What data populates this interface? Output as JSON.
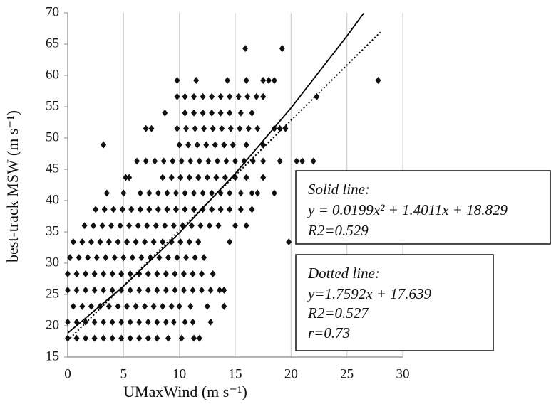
{
  "chart_data": {
    "type": "scatter",
    "x_label": "UMaxWind (m s⁻¹)",
    "y_label": "best-track MSW (m s⁻¹)",
    "xlim": [
      0,
      30
    ],
    "xticks": [
      0,
      5,
      10,
      15,
      20,
      25,
      30
    ],
    "ylim": [
      15,
      70
    ],
    "yticks": [
      15,
      20,
      25,
      30,
      35,
      40,
      45,
      50,
      55,
      60,
      65,
      70
    ],
    "grid": "x",
    "series": [
      {
        "color": "#111111",
        "x": [
          0,
          0.8,
          1.6,
          2.4,
          3.2,
          4,
          4.8,
          5.6,
          6.4,
          7.2,
          8,
          9,
          10.2,
          11.3,
          11.8,
          0,
          0.8,
          1.6,
          2.4,
          3.2,
          4,
          4.8,
          5.6,
          6.4,
          7.2,
          8,
          8.8,
          9.5,
          10.5,
          11.2,
          12.8,
          0.5,
          1.3,
          2.1,
          2.9,
          3.7,
          4.5,
          5.3,
          6.1,
          6.9,
          7.7,
          8.5,
          9.3,
          10,
          11,
          12.5,
          14,
          0,
          0.8,
          1.6,
          2.4,
          3.2,
          4,
          4.8,
          5.6,
          6.4,
          7.2,
          8,
          8.8,
          9.6,
          10.4,
          11.2,
          12,
          12.8,
          13.6,
          14,
          0,
          0.8,
          1.6,
          2.4,
          3.2,
          4,
          4.8,
          5.6,
          6.4,
          7.2,
          8,
          8.8,
          9.6,
          10.4,
          11.2,
          12,
          13,
          0.2,
          1,
          1.8,
          2.6,
          3.4,
          4.2,
          5,
          5.8,
          6.6,
          7.4,
          8.2,
          9,
          9.8,
          10.6,
          11.4,
          12.2,
          0.5,
          1.3,
          2.1,
          2.9,
          3.7,
          4.5,
          5.3,
          6.1,
          6.9,
          7.7,
          8.5,
          9.3,
          10.1,
          10.9,
          11.7,
          14.5,
          19.8,
          1.5,
          2.3,
          3.1,
          3.9,
          4.7,
          5.5,
          6.3,
          7.1,
          7.9,
          8.7,
          9.5,
          10.3,
          11.1,
          11.9,
          12.7,
          13.5,
          15,
          16,
          2.5,
          3.3,
          4.1,
          4.9,
          5.7,
          6.5,
          7.3,
          8.1,
          8.9,
          9.7,
          10.5,
          11.3,
          12.1,
          12.9,
          13.7,
          14.5,
          15.5,
          16.5,
          3.5,
          5,
          6.5,
          7.3,
          8.1,
          8.9,
          9.7,
          10.5,
          11.3,
          12.1,
          12.9,
          13.7,
          14.5,
          15.5,
          16.5,
          17,
          18.5,
          5.2,
          5.5,
          8.5,
          9.3,
          10.1,
          10.9,
          11.7,
          12.5,
          13.3,
          14.1,
          15,
          16,
          17.5,
          6.2,
          7,
          7.8,
          8.6,
          9.4,
          10.2,
          11,
          11.8,
          12.6,
          13.4,
          14.2,
          15,
          15.8,
          16.6,
          17.5,
          19,
          20.5,
          21,
          22,
          3.2,
          10,
          10.8,
          11.6,
          12.4,
          13.2,
          14,
          14.8,
          16,
          17.5,
          7,
          7.5,
          9.8,
          10.6,
          11.4,
          12.2,
          13,
          13.8,
          14.6,
          15.4,
          16.2,
          17,
          18.5,
          19,
          19.5,
          8.7,
          10.5,
          11.3,
          12.1,
          12.9,
          13.7,
          14.5,
          15.5,
          16.5,
          9.8,
          10.5,
          11.3,
          12.1,
          12.9,
          13.7,
          14.5,
          15.3,
          16.1,
          16.9,
          17.5,
          22.3,
          9.8,
          11.5,
          14.3,
          16,
          17.5,
          18,
          18.5,
          27.8,
          15.9,
          19.2
        ],
        "values": [
          18,
          18,
          18,
          18,
          18,
          18,
          18,
          18,
          18,
          18,
          18,
          18,
          18,
          18,
          18,
          20.6,
          20.6,
          20.6,
          20.6,
          20.6,
          20.6,
          20.6,
          20.6,
          20.6,
          20.6,
          20.6,
          20.6,
          20.6,
          20.6,
          20.6,
          20.6,
          23.1,
          23.1,
          23.1,
          23.1,
          23.1,
          23.1,
          23.1,
          23.1,
          23.1,
          23.1,
          23.1,
          23.1,
          23.1,
          23.1,
          23.1,
          23.1,
          25.7,
          25.7,
          25.7,
          25.7,
          25.7,
          25.7,
          25.7,
          25.7,
          25.7,
          25.7,
          25.7,
          25.7,
          25.7,
          25.7,
          25.7,
          25.7,
          25.7,
          25.7,
          25.7,
          28.3,
          28.3,
          28.3,
          28.3,
          28.3,
          28.3,
          28.3,
          28.3,
          28.3,
          28.3,
          28.3,
          28.3,
          28.3,
          28.3,
          28.3,
          28.3,
          28.3,
          30.9,
          30.9,
          30.9,
          30.9,
          30.9,
          30.9,
          30.9,
          30.9,
          30.9,
          30.9,
          30.9,
          30.9,
          30.9,
          30.9,
          30.9,
          30.9,
          33.4,
          33.4,
          33.4,
          33.4,
          33.4,
          33.4,
          33.4,
          33.4,
          33.4,
          33.4,
          33.4,
          33.4,
          33.4,
          33.4,
          33.4,
          33.4,
          33.4,
          36,
          36,
          36,
          36,
          36,
          36,
          36,
          36,
          36,
          36,
          36,
          36,
          36,
          36,
          36,
          36,
          36,
          36,
          38.6,
          38.6,
          38.6,
          38.6,
          38.6,
          38.6,
          38.6,
          38.6,
          38.6,
          38.6,
          38.6,
          38.6,
          38.6,
          38.6,
          38.6,
          38.6,
          38.6,
          38.6,
          41.2,
          41.2,
          41.2,
          41.2,
          41.2,
          41.2,
          41.2,
          41.2,
          41.2,
          41.2,
          41.2,
          41.2,
          41.2,
          41.2,
          41.2,
          41.2,
          41.2,
          43.7,
          43.7,
          43.7,
          43.7,
          43.7,
          43.7,
          43.7,
          43.7,
          43.7,
          43.7,
          43.7,
          43.7,
          43.7,
          46.3,
          46.3,
          46.3,
          46.3,
          46.3,
          46.3,
          46.3,
          46.3,
          46.3,
          46.3,
          46.3,
          46.3,
          46.3,
          46.3,
          46.3,
          46.3,
          46.3,
          46.3,
          46.3,
          48.9,
          48.9,
          48.9,
          48.9,
          48.9,
          48.9,
          48.9,
          48.9,
          48.9,
          48.9,
          51.5,
          51.5,
          51.5,
          51.5,
          51.5,
          51.5,
          51.5,
          51.5,
          51.5,
          51.5,
          51.5,
          51.5,
          51.5,
          51.5,
          51.5,
          54,
          54,
          54,
          54,
          54,
          54,
          54,
          54,
          54,
          56.6,
          56.6,
          56.6,
          56.6,
          56.6,
          56.6,
          56.6,
          56.6,
          56.6,
          56.6,
          56.6,
          56.6,
          59.2,
          59.2,
          59.2,
          59.2,
          59.2,
          59.2,
          59.2,
          59.2,
          64.3,
          64.3
        ]
      }
    ],
    "trendlines": [
      {
        "style": "solid",
        "color": "#000000",
        "x": [
          0,
          5,
          10,
          15,
          20,
          25,
          26.5
        ],
        "values": [
          18.83,
          26.33,
          34.83,
          44.32,
          54.81,
          66.29,
          69.93
        ]
      },
      {
        "style": "dotted",
        "color": "#000000",
        "x": [
          0,
          28
        ],
        "values": [
          17.64,
          66.9
        ]
      }
    ],
    "annotations": [
      {
        "lines": [
          "Solid line:",
          "y = 0.0199x² + 1.4011x + 18.829",
          "R2=0.529"
        ]
      },
      {
        "lines": [
          "Dotted line:",
          "y=1.7592x + 17.639",
          "R2=0.527",
          "r=0.73"
        ]
      }
    ]
  }
}
